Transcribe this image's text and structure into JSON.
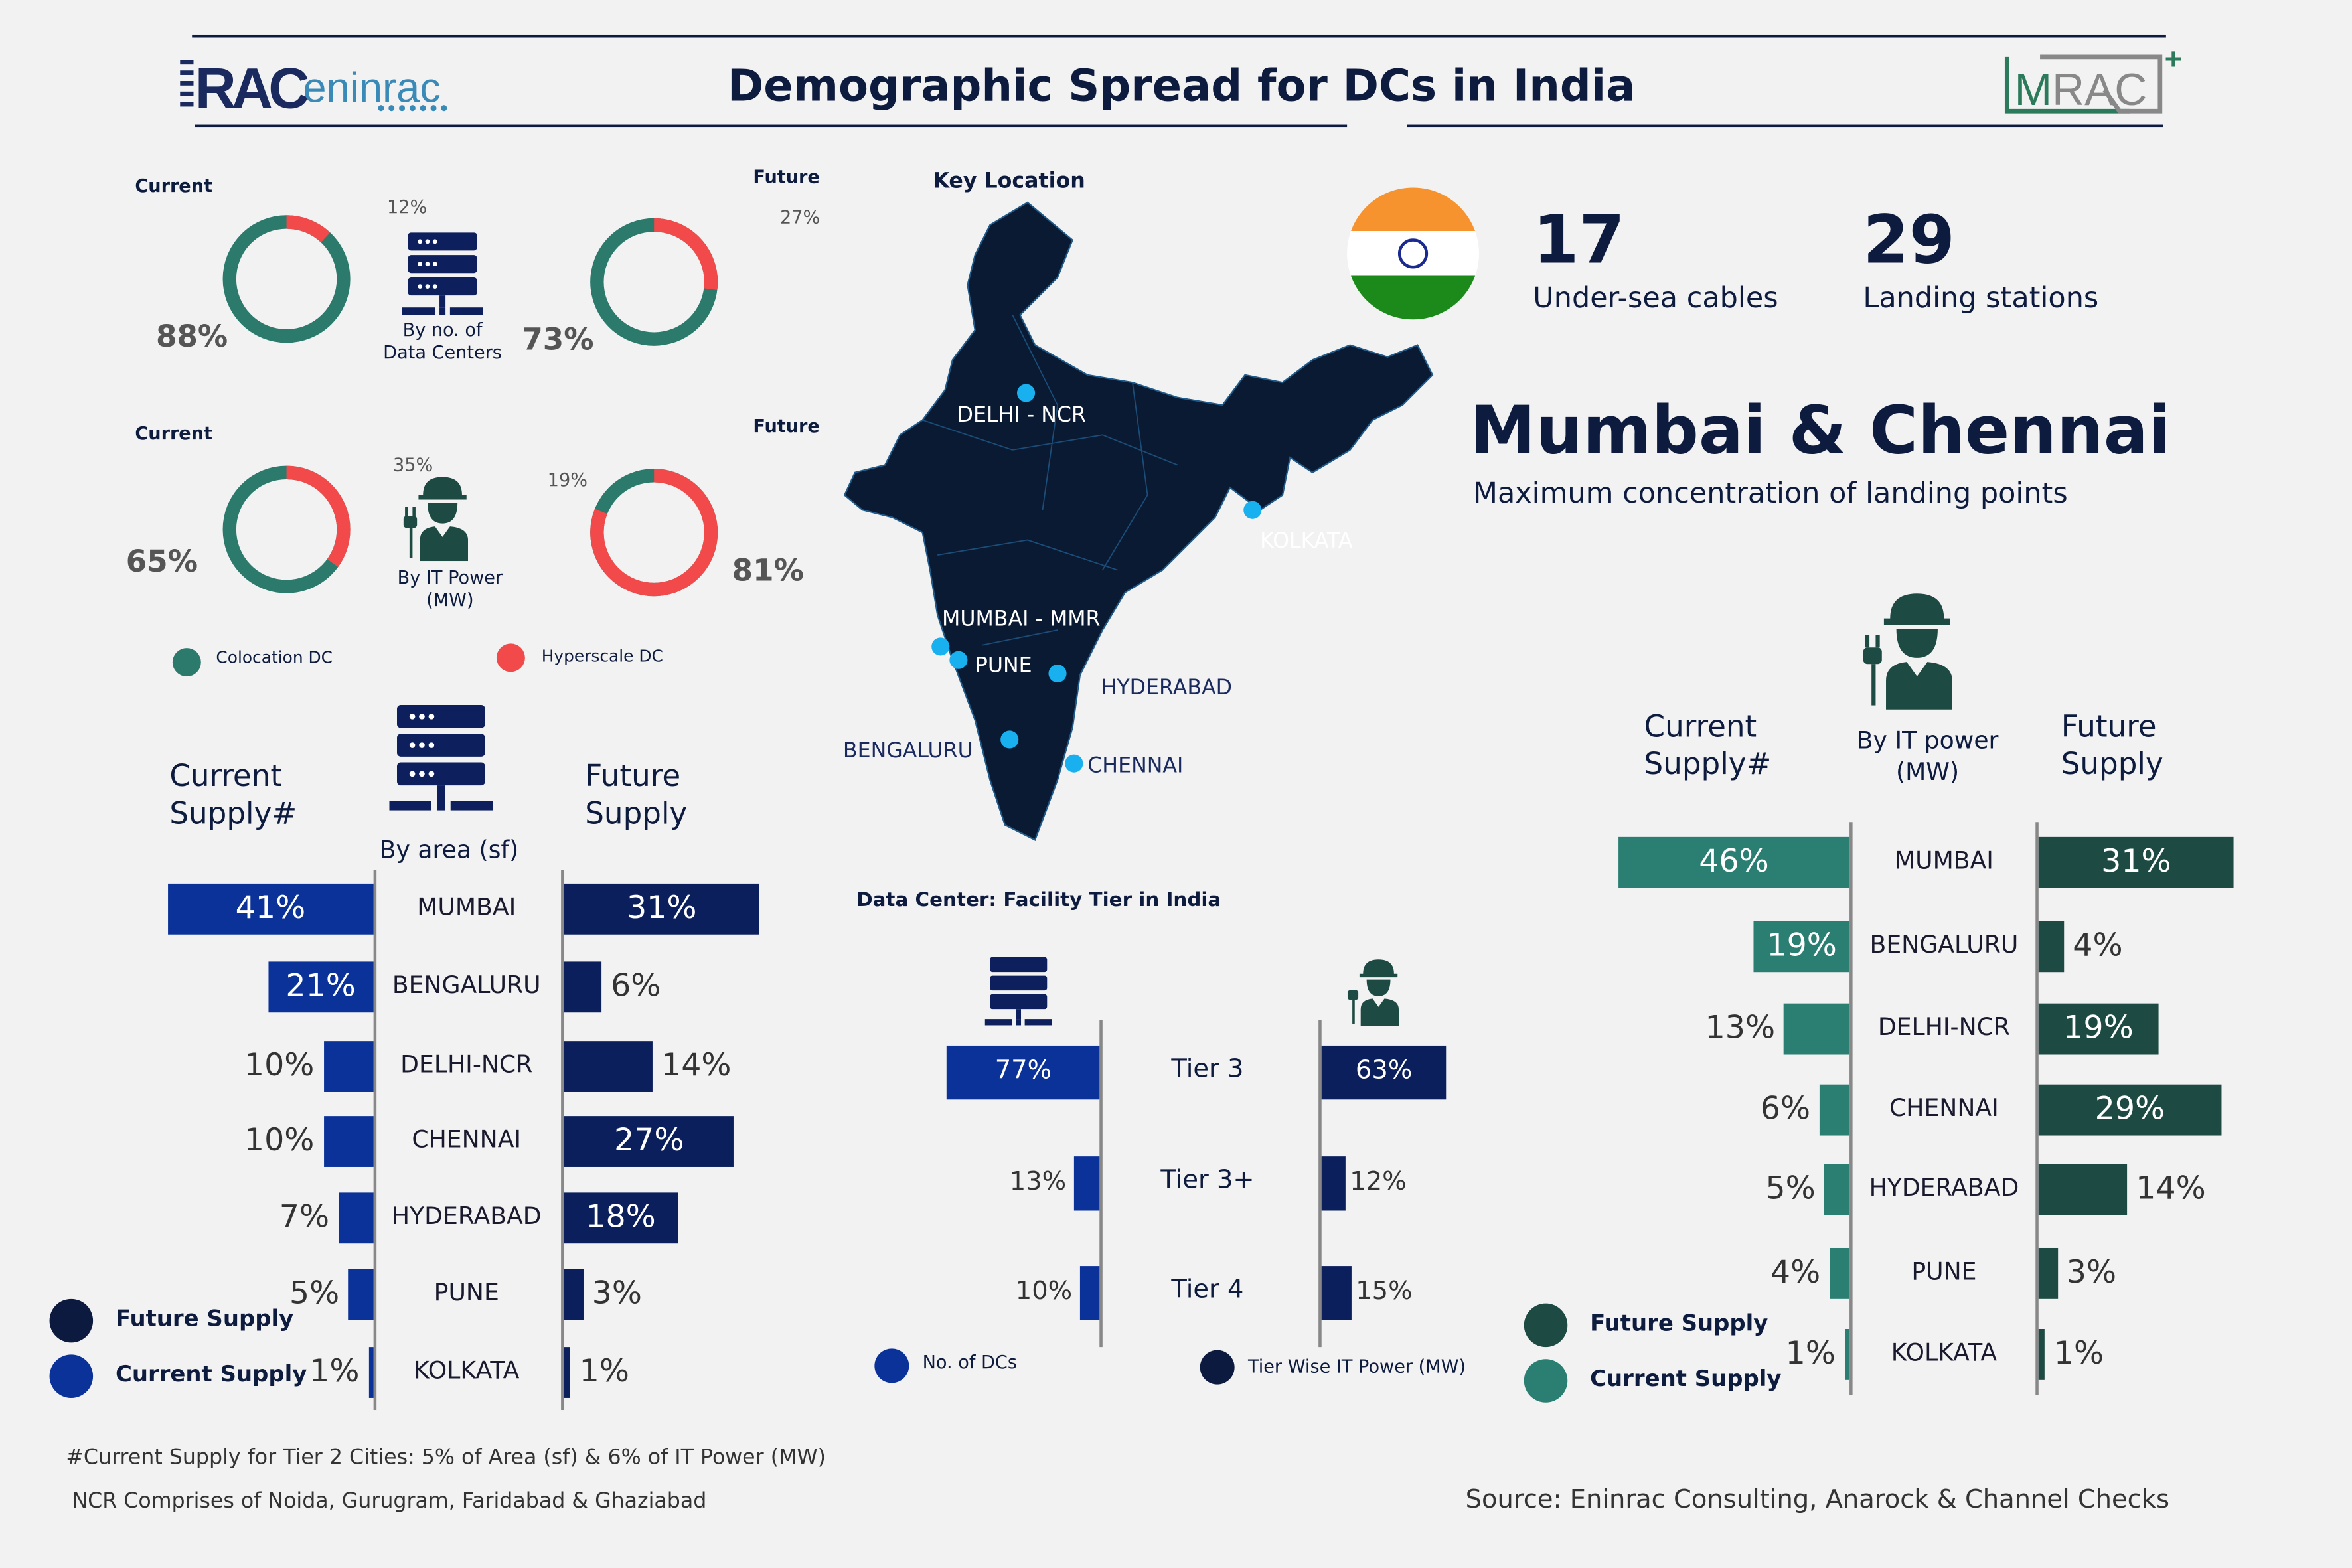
{
  "header": {
    "title": "Demographic Spread for DCs in India",
    "logo_left": "RAC eninrac",
    "logo_right": "MRAC+"
  },
  "colors": {
    "colocation": "#2b7a6c",
    "hyperscale": "#f24a4a",
    "current_blue": "#0a3299",
    "future_navy": "#0b1f5c",
    "teal_current": "#2a7e72",
    "teal_future": "#1d4a42"
  },
  "donuts": {
    "current_label": "Current",
    "future_label": "Future",
    "by_dc_label": [
      "By no. of",
      "Data Centers"
    ],
    "by_power_label": [
      "By IT Power",
      "(MW)"
    ],
    "charts": [
      {
        "name": "current-dc",
        "colocation": 88,
        "hyperscale": 12,
        "colo_text": "88%",
        "hyper_text": "12%"
      },
      {
        "name": "future-dc",
        "colocation": 73,
        "hyperscale": 27,
        "colo_text": "73%",
        "hyper_text": "27%"
      },
      {
        "name": "current-power",
        "colocation": 65,
        "hyperscale": 35,
        "colo_text": "65%",
        "hyper_text": "35%"
      },
      {
        "name": "future-power",
        "colocation": 19,
        "hyperscale": 81,
        "colo_text": "19%",
        "hyper_text": "81%"
      }
    ],
    "legend": {
      "colocation": "Colocation DC",
      "hyperscale": "Hyperscale DC"
    }
  },
  "map": {
    "title": "Key Location",
    "cities": [
      "DELHI - NCR",
      "KOLKATA",
      "MUMBAI - MMR",
      "PUNE",
      "HYDERABAD",
      "BENGALURU",
      "CHENNAI"
    ]
  },
  "stats": {
    "cables_value": "17",
    "cables_label": "Under-sea cables",
    "stations_value": "29",
    "stations_label": "Landing stations"
  },
  "highlight": {
    "title": "Mumbai & Chennai",
    "subtitle": "Maximum concentration of landing points"
  },
  "chart_data": [
    {
      "type": "bar",
      "title": "By area (sf)",
      "current_header": [
        "Current",
        "Supply#"
      ],
      "future_header": [
        "Future",
        "Supply"
      ],
      "categories": [
        "MUMBAI",
        "BENGALURU",
        "DELHI-NCR",
        "CHENNAI",
        "HYDERABAD",
        "PUNE",
        "KOLKATA"
      ],
      "series": [
        {
          "name": "Current Supply",
          "values": [
            41,
            21,
            10,
            10,
            7,
            5,
            1
          ]
        },
        {
          "name": "Future Supply",
          "values": [
            31,
            6,
            14,
            27,
            18,
            3,
            1
          ]
        }
      ],
      "legend": [
        "Future Supply",
        "Current Supply"
      ]
    },
    {
      "type": "bar",
      "title": "Data Center: Facility Tier in India",
      "categories": [
        "Tier 3",
        "Tier 3+",
        "Tier 4"
      ],
      "series": [
        {
          "name": "No. of DCs",
          "values": [
            77,
            13,
            10
          ]
        },
        {
          "name": "Tier Wise IT Power (MW)",
          "values": [
            63,
            12,
            15
          ]
        }
      ]
    },
    {
      "type": "bar",
      "title": "By IT power (MW)",
      "current_header": [
        "Current",
        "Supply#"
      ],
      "future_header": [
        "Future",
        "Supply"
      ],
      "categories": [
        "MUMBAI",
        "BENGALURU",
        "DELHI-NCR",
        "CHENNAI",
        "HYDERABAD",
        "PUNE",
        "KOLKATA"
      ],
      "series": [
        {
          "name": "Current Supply",
          "values": [
            46,
            19,
            13,
            6,
            5,
            4,
            1
          ]
        },
        {
          "name": "Future Supply",
          "values": [
            31,
            4,
            19,
            29,
            14,
            3,
            1
          ]
        }
      ],
      "legend": [
        "Future Supply",
        "Current Supply"
      ]
    }
  ],
  "footer": {
    "note1": "#Current Supply for Tier 2 Cities: 5% of Area (sf) & 6% of IT Power (MW)",
    "note2": "NCR Comprises of Noida, Gurugram, Faridabad & Ghaziabad",
    "source": "Source: Eninrac Consulting, Anarock & Channel Checks"
  }
}
